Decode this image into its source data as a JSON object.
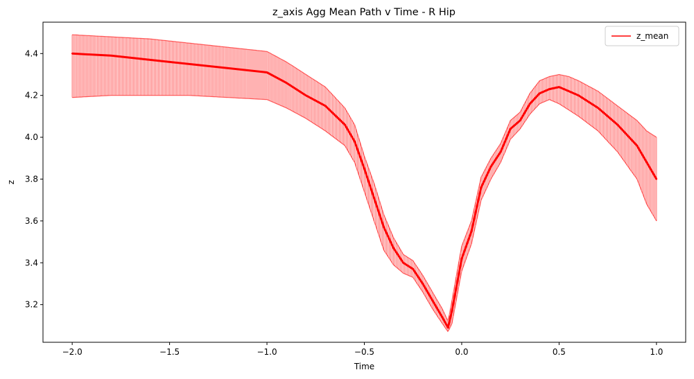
{
  "chart_data": {
    "type": "line",
    "title": "z_axis Agg Mean Path v Time - R Hip",
    "xlabel": "Time",
    "ylabel": "z",
    "xlim": [
      -2.15,
      1.15
    ],
    "ylim": [
      3.02,
      4.55
    ],
    "x_ticks": [
      {
        "value": -2.0,
        "label": "−2.0"
      },
      {
        "value": -1.5,
        "label": "−1.5"
      },
      {
        "value": -1.0,
        "label": "−1.0"
      },
      {
        "value": -0.5,
        "label": "−0.5"
      },
      {
        "value": 0.0,
        "label": "0.0"
      },
      {
        "value": 0.5,
        "label": "0.5"
      },
      {
        "value": 1.0,
        "label": "1.0"
      }
    ],
    "y_ticks": [
      {
        "value": 3.2,
        "label": "3.2"
      },
      {
        "value": 3.4,
        "label": "3.4"
      },
      {
        "value": 3.6,
        "label": "3.6"
      },
      {
        "value": 3.8,
        "label": "3.8"
      },
      {
        "value": 4.0,
        "label": "4.0"
      },
      {
        "value": 4.2,
        "label": "4.2"
      },
      {
        "value": 4.4,
        "label": "4.4"
      }
    ],
    "grid": false,
    "legend": {
      "position": "top-right",
      "entries": [
        "z_mean"
      ]
    },
    "series": [
      {
        "name": "z_mean",
        "color": "#ff0000",
        "x": [
          -2.0,
          -1.8,
          -1.6,
          -1.4,
          -1.2,
          -1.0,
          -0.9,
          -0.8,
          -0.7,
          -0.6,
          -0.55,
          -0.5,
          -0.45,
          -0.4,
          -0.35,
          -0.3,
          -0.25,
          -0.2,
          -0.15,
          -0.1,
          -0.07,
          -0.05,
          0.0,
          0.05,
          0.1,
          0.15,
          0.2,
          0.25,
          0.3,
          0.35,
          0.4,
          0.45,
          0.5,
          0.55,
          0.6,
          0.7,
          0.8,
          0.9,
          0.95,
          1.0
        ],
        "mean": [
          4.4,
          4.39,
          4.37,
          4.35,
          4.33,
          4.31,
          4.26,
          4.2,
          4.15,
          4.06,
          3.98,
          3.85,
          3.71,
          3.57,
          3.47,
          3.4,
          3.37,
          3.3,
          3.22,
          3.14,
          3.09,
          3.17,
          3.42,
          3.55,
          3.76,
          3.86,
          3.93,
          4.04,
          4.08,
          4.16,
          4.21,
          4.23,
          4.24,
          4.22,
          4.2,
          4.14,
          4.06,
          3.96,
          3.88,
          3.8
        ],
        "upper": [
          4.49,
          4.48,
          4.47,
          4.45,
          4.43,
          4.41,
          4.36,
          4.3,
          4.24,
          4.14,
          4.06,
          3.91,
          3.78,
          3.63,
          3.52,
          3.44,
          3.41,
          3.34,
          3.26,
          3.18,
          3.12,
          3.22,
          3.48,
          3.6,
          3.81,
          3.9,
          3.97,
          4.08,
          4.12,
          4.21,
          4.27,
          4.29,
          4.3,
          4.29,
          4.27,
          4.22,
          4.15,
          4.08,
          4.03,
          4.0
        ],
        "lower": [
          4.19,
          4.2,
          4.2,
          4.2,
          4.19,
          4.18,
          4.14,
          4.09,
          4.03,
          3.96,
          3.88,
          3.74,
          3.6,
          3.46,
          3.39,
          3.35,
          3.33,
          3.26,
          3.18,
          3.11,
          3.07,
          3.11,
          3.36,
          3.49,
          3.7,
          3.8,
          3.88,
          3.99,
          4.04,
          4.11,
          4.16,
          4.18,
          4.16,
          4.13,
          4.1,
          4.03,
          3.93,
          3.8,
          3.68,
          3.6
        ]
      }
    ]
  }
}
